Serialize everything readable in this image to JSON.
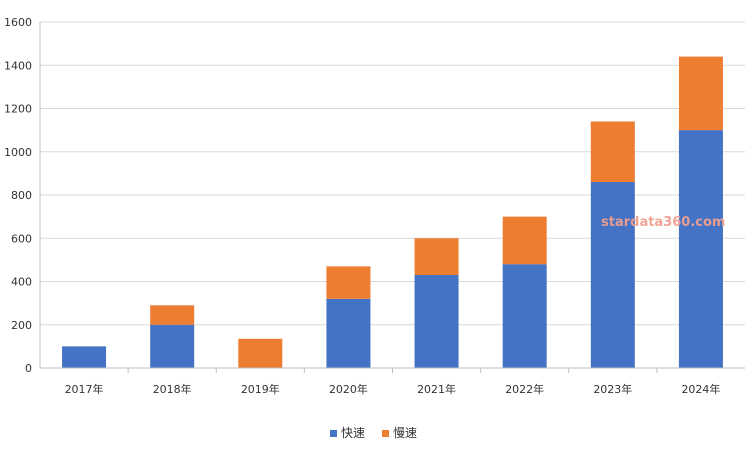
{
  "chart_data": {
    "type": "bar",
    "stacked": true,
    "categories": [
      "2017年",
      "2018年",
      "2019年",
      "2020年",
      "2021年",
      "2022年",
      "2023年",
      "2024年"
    ],
    "series": [
      {
        "name": "快速",
        "color": "#4472C4",
        "values": [
          100,
          200,
          0,
          320,
          430,
          480,
          860,
          1100
        ]
      },
      {
        "name": "慢速",
        "color": "#ED7D31",
        "values": [
          0,
          90,
          135,
          150,
          170,
          220,
          280,
          340
        ]
      }
    ],
    "ylim": [
      0,
      1600
    ],
    "yticks": [
      0,
      200,
      400,
      600,
      800,
      1000,
      1200,
      1400,
      1600
    ],
    "grid": true,
    "legend": "bottom-center",
    "title": "",
    "xlabel": "",
    "ylabel": ""
  },
  "watermark": "stardata360.com"
}
